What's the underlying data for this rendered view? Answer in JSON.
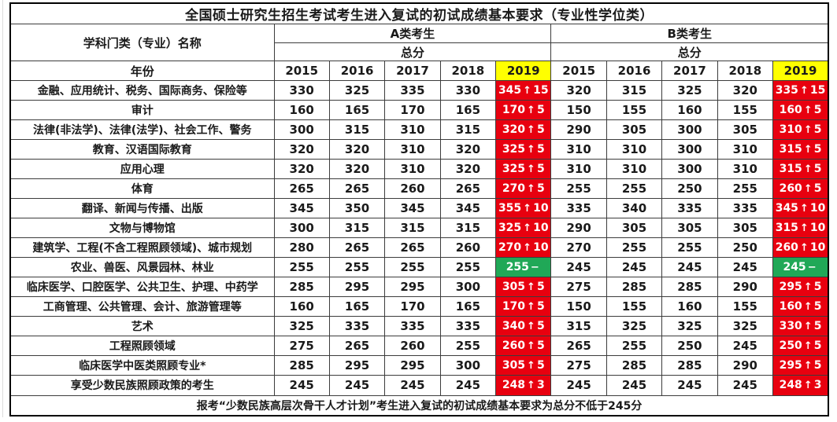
{
  "title": "全国硕士研究生招生考试考生进入复试的初试成绩基本要求（专业性学位类）",
  "header": {
    "category_label": "学科门类（专业）名称",
    "group_a": "A类考生",
    "group_b": "B类考生",
    "subheader": "总分",
    "year_label": "年份",
    "years": [
      "2015",
      "2016",
      "2017",
      "2018",
      "2019"
    ]
  },
  "symbols": {
    "up_arrow": "↑",
    "no_change_dash": "−"
  },
  "colors": {
    "increase_bg": "#e8000f",
    "no_change_bg": "#20a857",
    "year_2019_bg": "#ffff00",
    "highlight_text": "#ffffff"
  },
  "rows": [
    {
      "name": "金融、应用统计、税务、国际商务、保险等",
      "a": [
        "330",
        "325",
        "335",
        "330"
      ],
      "a_2019": {
        "score": "345",
        "delta": "15",
        "trend": "up"
      },
      "b": [
        "320",
        "315",
        "325",
        "320"
      ],
      "b_2019": {
        "score": "335",
        "delta": "15",
        "trend": "up"
      }
    },
    {
      "name": "审计",
      "a": [
        "160",
        "165",
        "170",
        "165"
      ],
      "a_2019": {
        "score": "170",
        "delta": "5",
        "trend": "up"
      },
      "b": [
        "150",
        "155",
        "160",
        "155"
      ],
      "b_2019": {
        "score": "160",
        "delta": "5",
        "trend": "up"
      }
    },
    {
      "name": "法律(非法学)、法律(法学)、社会工作、警务",
      "a": [
        "300",
        "315",
        "310",
        "315"
      ],
      "a_2019": {
        "score": "320",
        "delta": "5",
        "trend": "up"
      },
      "b": [
        "290",
        "305",
        "300",
        "305"
      ],
      "b_2019": {
        "score": "310",
        "delta": "5",
        "trend": "up"
      }
    },
    {
      "name": "教育、汉语国际教育",
      "a": [
        "320",
        "320",
        "310",
        "320"
      ],
      "a_2019": {
        "score": "325",
        "delta": "5",
        "trend": "up"
      },
      "b": [
        "310",
        "310",
        "300",
        "310"
      ],
      "b_2019": {
        "score": "315",
        "delta": "5",
        "trend": "up"
      }
    },
    {
      "name": "应用心理",
      "a": [
        "320",
        "320",
        "310",
        "320"
      ],
      "a_2019": {
        "score": "325",
        "delta": "5",
        "trend": "up"
      },
      "b": [
        "310",
        "310",
        "300",
        "310"
      ],
      "b_2019": {
        "score": "315",
        "delta": "5",
        "trend": "up"
      }
    },
    {
      "name": "体育",
      "a": [
        "265",
        "265",
        "260",
        "265"
      ],
      "a_2019": {
        "score": "270",
        "delta": "5",
        "trend": "up"
      },
      "b": [
        "255",
        "255",
        "250",
        "255"
      ],
      "b_2019": {
        "score": "260",
        "delta": "5",
        "trend": "up"
      }
    },
    {
      "name": "翻译、新闻与传播、出版",
      "a": [
        "345",
        "350",
        "345",
        "345"
      ],
      "a_2019": {
        "score": "355",
        "delta": "10",
        "trend": "up"
      },
      "b": [
        "335",
        "340",
        "335",
        "335"
      ],
      "b_2019": {
        "score": "345",
        "delta": "10",
        "trend": "up"
      }
    },
    {
      "name": "文物与博物馆",
      "a": [
        "300",
        "315",
        "315",
        "315"
      ],
      "a_2019": {
        "score": "325",
        "delta": "10",
        "trend": "up"
      },
      "b": [
        "290",
        "305",
        "305",
        "305"
      ],
      "b_2019": {
        "score": "315",
        "delta": "10",
        "trend": "up"
      }
    },
    {
      "name": "建筑学、工程(不含工程照顾领域)、城市规划",
      "a": [
        "280",
        "265",
        "265",
        "260"
      ],
      "a_2019": {
        "score": "270",
        "delta": "10",
        "trend": "up"
      },
      "b": [
        "270",
        "255",
        "255",
        "250"
      ],
      "b_2019": {
        "score": "260",
        "delta": "10",
        "trend": "up"
      }
    },
    {
      "name": "农业、兽医、风景园林、林业",
      "a": [
        "255",
        "255",
        "255",
        "255"
      ],
      "a_2019": {
        "score": "255",
        "delta": "",
        "trend": "flat"
      },
      "b": [
        "245",
        "245",
        "245",
        "245"
      ],
      "b_2019": {
        "score": "245",
        "delta": "",
        "trend": "flat"
      }
    },
    {
      "name": "临床医学、口腔医学、公共卫生、护理、中药学",
      "a": [
        "285",
        "295",
        "295",
        "300"
      ],
      "a_2019": {
        "score": "305",
        "delta": "5",
        "trend": "up"
      },
      "b": [
        "275",
        "285",
        "285",
        "290"
      ],
      "b_2019": {
        "score": "295",
        "delta": "5",
        "trend": "up"
      }
    },
    {
      "name": "工商管理、公共管理、会计、旅游管理等",
      "a": [
        "160",
        "165",
        "170",
        "165"
      ],
      "a_2019": {
        "score": "170",
        "delta": "5",
        "trend": "up"
      },
      "b": [
        "150",
        "155",
        "160",
        "155"
      ],
      "b_2019": {
        "score": "160",
        "delta": "5",
        "trend": "up"
      }
    },
    {
      "name": "艺术",
      "a": [
        "325",
        "335",
        "335",
        "335"
      ],
      "a_2019": {
        "score": "340",
        "delta": "5",
        "trend": "up"
      },
      "b": [
        "315",
        "325",
        "325",
        "325"
      ],
      "b_2019": {
        "score": "330",
        "delta": "5",
        "trend": "up"
      }
    },
    {
      "name": "工程照顾领域",
      "a": [
        "275",
        "265",
        "260",
        "255"
      ],
      "a_2019": {
        "score": "260",
        "delta": "5",
        "trend": "up"
      },
      "b": [
        "265",
        "255",
        "250",
        "245"
      ],
      "b_2019": {
        "score": "250",
        "delta": "5",
        "trend": "up"
      }
    },
    {
      "name": "临床医学中医类照顾专业*",
      "a": [
        "285",
        "295",
        "295",
        "300"
      ],
      "a_2019": {
        "score": "305",
        "delta": "5",
        "trend": "up"
      },
      "b": [
        "275",
        "285",
        "285",
        "290"
      ],
      "b_2019": {
        "score": "295",
        "delta": "5",
        "trend": "up"
      }
    },
    {
      "name": "享受少数民族照顾政策的考生",
      "a": [
        "245",
        "245",
        "245",
        "245"
      ],
      "a_2019": {
        "score": "248",
        "delta": "3",
        "trend": "up"
      },
      "b": [
        "245",
        "245",
        "245",
        "245"
      ],
      "b_2019": {
        "score": "248",
        "delta": "3",
        "trend": "up"
      }
    }
  ],
  "footer_note": "报考“少数民族高层次骨干人才计划”考生进入复试的初试成绩基本要求为总分不低于245分"
}
